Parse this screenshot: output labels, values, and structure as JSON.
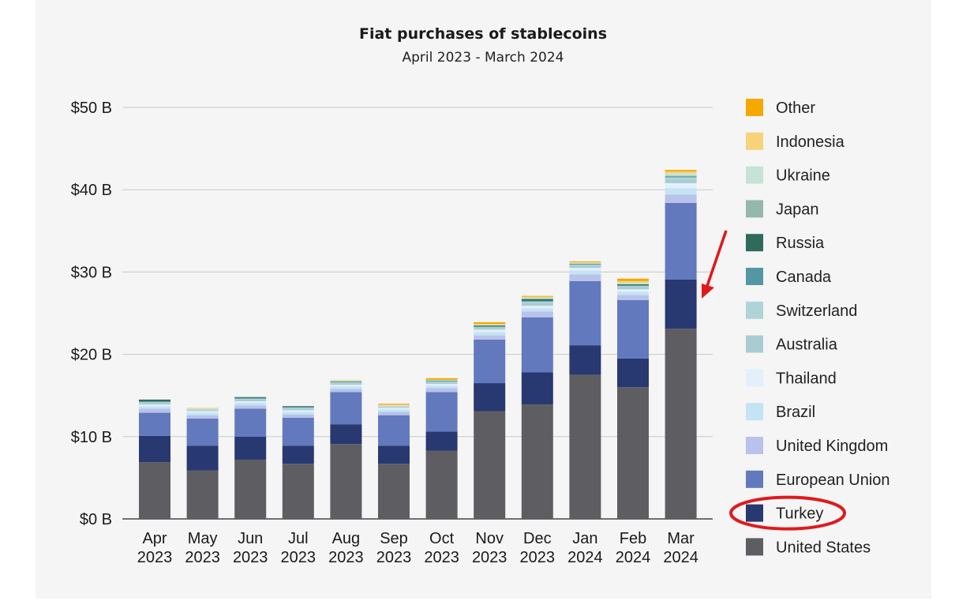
{
  "chart_data": {
    "type": "bar",
    "stacked": true,
    "title": "Fiat purchases of stablecoins",
    "subtitle": "April 2023 - March 2024",
    "xlabel": "",
    "ylabel": "",
    "ylim": [
      0,
      50
    ],
    "yticks": [
      {
        "value": 0,
        "label": "$0 B"
      },
      {
        "value": 10,
        "label": "$10 B"
      },
      {
        "value": 20,
        "label": "$20 B"
      },
      {
        "value": 30,
        "label": "$30 B"
      },
      {
        "value": 40,
        "label": "$40 B"
      },
      {
        "value": 50,
        "label": "$50 B"
      }
    ],
    "categories": [
      {
        "month": "Apr",
        "year": "2023"
      },
      {
        "month": "May",
        "year": "2023"
      },
      {
        "month": "Jun",
        "year": "2023"
      },
      {
        "month": "Jul",
        "year": "2023"
      },
      {
        "month": "Aug",
        "year": "2023"
      },
      {
        "month": "Sep",
        "year": "2023"
      },
      {
        "month": "Oct",
        "year": "2023"
      },
      {
        "month": "Nov",
        "year": "2023"
      },
      {
        "month": "Dec",
        "year": "2023"
      },
      {
        "month": "Jan",
        "year": "2024"
      },
      {
        "month": "Feb",
        "year": "2024"
      },
      {
        "month": "Mar",
        "year": "2024"
      }
    ],
    "series": [
      {
        "name": "United States",
        "color": "#5e5e62",
        "values": [
          6.9,
          5.9,
          7.2,
          6.7,
          9.1,
          6.7,
          8.3,
          13.1,
          13.9,
          17.5,
          16.0,
          23.1
        ]
      },
      {
        "name": "Turkey",
        "color": "#283870",
        "values": [
          3.2,
          3.0,
          2.8,
          2.2,
          2.4,
          2.2,
          2.3,
          3.4,
          3.9,
          3.6,
          3.5,
          6.0
        ]
      },
      {
        "name": "European Union",
        "color": "#6279bd",
        "values": [
          2.8,
          3.3,
          3.4,
          3.4,
          3.9,
          3.7,
          4.8,
          5.3,
          6.7,
          7.8,
          7.1,
          9.3
        ]
      },
      {
        "name": "United Kingdom",
        "color": "#b8c2ea",
        "values": [
          0.5,
          0.4,
          0.4,
          0.4,
          0.4,
          0.4,
          0.5,
          0.5,
          0.7,
          0.8,
          0.6,
          1.0
        ]
      },
      {
        "name": "Brazil",
        "color": "#c4e3f5",
        "values": [
          0.3,
          0.3,
          0.3,
          0.3,
          0.3,
          0.3,
          0.3,
          0.4,
          0.4,
          0.5,
          0.4,
          0.8
        ]
      },
      {
        "name": "Thailand",
        "color": "#e3f0fb",
        "values": [
          0.2,
          0.2,
          0.2,
          0.2,
          0.2,
          0.2,
          0.2,
          0.3,
          0.3,
          0.3,
          0.3,
          0.6
        ]
      },
      {
        "name": "Australia",
        "color": "#a9cbd2",
        "values": [
          0.2,
          0.1,
          0.2,
          0.2,
          0.2,
          0.1,
          0.2,
          0.2,
          0.3,
          0.3,
          0.3,
          0.5
        ]
      },
      {
        "name": "Switzerland",
        "color": "#b0d3d8",
        "values": [
          0.1,
          0.1,
          0.1,
          0.1,
          0.1,
          0.1,
          0.1,
          0.1,
          0.2,
          0.1,
          0.1,
          0.2
        ]
      },
      {
        "name": "Canada",
        "color": "#5497a4",
        "values": [
          0.1,
          0.0,
          0.1,
          0.1,
          0.1,
          0.0,
          0.1,
          0.1,
          0.1,
          0.1,
          0.1,
          0.1
        ]
      },
      {
        "name": "Russia",
        "color": "#2e6b5b",
        "values": [
          0.2,
          0.0,
          0.1,
          0.1,
          0.0,
          0.0,
          0.0,
          0.1,
          0.2,
          0.0,
          0.1,
          0.0
        ]
      },
      {
        "name": "Japan",
        "color": "#94b8aa",
        "values": [
          0.0,
          0.0,
          0.0,
          0.0,
          0.0,
          0.0,
          0.0,
          0.0,
          0.1,
          0.0,
          0.0,
          0.1
        ]
      },
      {
        "name": "Ukraine",
        "color": "#c5e4d6",
        "values": [
          0.0,
          0.1,
          0.1,
          0.0,
          0.1,
          0.1,
          0.1,
          0.1,
          0.1,
          0.1,
          0.2,
          0.3
        ]
      },
      {
        "name": "Indonesia",
        "color": "#f8d27a",
        "values": [
          0.0,
          0.1,
          0.0,
          0.0,
          0.1,
          0.1,
          0.0,
          0.1,
          0.1,
          0.1,
          0.2,
          0.2
        ]
      },
      {
        "name": "Other",
        "color": "#f5a800",
        "values": [
          0.0,
          0.0,
          0.0,
          0.0,
          0.0,
          0.1,
          0.2,
          0.2,
          0.1,
          0.1,
          0.3,
          0.2
        ]
      }
    ],
    "legend_position": "right",
    "legend_order": [
      "Other",
      "Indonesia",
      "Ukraine",
      "Japan",
      "Russia",
      "Canada",
      "Switzerland",
      "Australia",
      "Thailand",
      "Brazil",
      "United Kingdom",
      "European Union",
      "Turkey",
      "United States"
    ],
    "annotations": {
      "highlighted_legend_entry": "Turkey",
      "highlighted_bar": "Mar 2024",
      "annotation_color": "#e0191b"
    }
  }
}
